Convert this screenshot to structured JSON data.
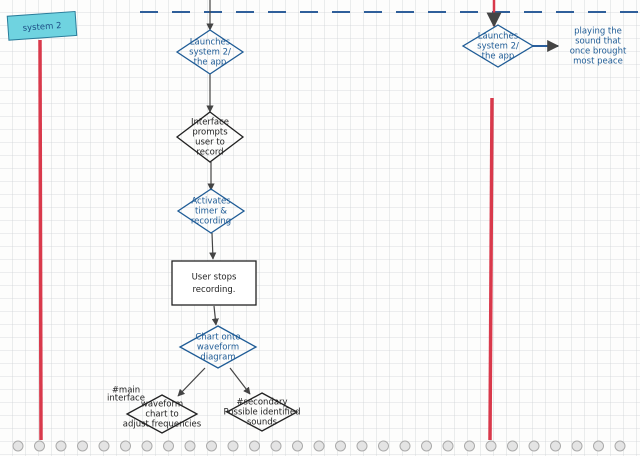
{
  "header": {
    "title": "system 2"
  },
  "nodes": [
    {
      "lines": [
        "Launches",
        "system 2/",
        "the app"
      ]
    },
    {
      "lines": [
        "Interface",
        "prompts",
        "user to",
        "record"
      ]
    },
    {
      "lines": [
        "Activates",
        "timer &",
        "recording"
      ]
    },
    {
      "lines": [
        "User stops",
        "recording."
      ]
    },
    {
      "lines": [
        "Chart onto",
        "waveform",
        "diagram"
      ]
    },
    {
      "lines": [
        "waveform",
        "chart to",
        "adjust frequencies"
      ]
    },
    {
      "lines": [
        "#secondary",
        "Possible identified",
        "sounds"
      ]
    },
    {
      "lines": [
        "Launches",
        "system 2/",
        "the app"
      ]
    },
    {
      "lines": [
        "playing the",
        "sound that",
        "once brought",
        "most peace"
      ]
    }
  ],
  "annotations": [
    {
      "lines": [
        "#main",
        "interface"
      ]
    }
  ]
}
